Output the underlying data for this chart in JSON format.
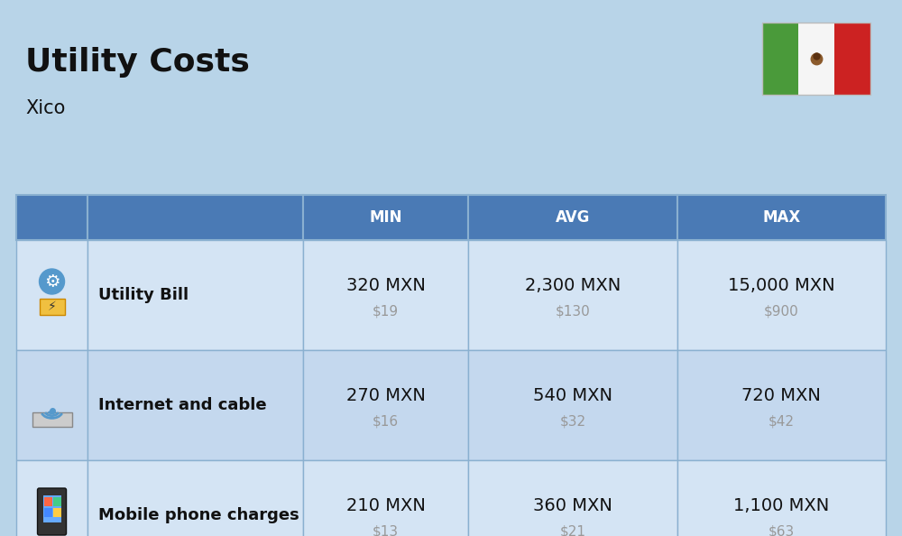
{
  "title": "Utility Costs",
  "subtitle": "Xico",
  "background_color": "#b8d4e8",
  "header_color": "#4a7ab5",
  "header_text_color": "#ffffff",
  "row_color_odd": "#d4e4f4",
  "row_color_even": "#c4d8ee",
  "border_color": "#8ab0d0",
  "text_color": "#111111",
  "secondary_text_color": "#999999",
  "columns": [
    "MIN",
    "AVG",
    "MAX"
  ],
  "rows": [
    {
      "label": "Utility Bill",
      "min_mxn": "320 MXN",
      "min_usd": "$19",
      "avg_mxn": "2,300 MXN",
      "avg_usd": "$130",
      "max_mxn": "15,000 MXN",
      "max_usd": "$900"
    },
    {
      "label": "Internet and cable",
      "min_mxn": "270 MXN",
      "min_usd": "$16",
      "avg_mxn": "540 MXN",
      "avg_usd": "$32",
      "max_mxn": "720 MXN",
      "max_usd": "$42"
    },
    {
      "label": "Mobile phone charges",
      "min_mxn": "210 MXN",
      "min_usd": "$13",
      "avg_mxn": "360 MXN",
      "avg_usd": "$21",
      "max_mxn": "1,100 MXN",
      "max_usd": "$63"
    }
  ],
  "flag_green": "#4a9a3a",
  "flag_white": "#f5f5f5",
  "flag_red": "#cc2222",
  "title_fontsize": 26,
  "subtitle_fontsize": 15,
  "header_fontsize": 12,
  "label_fontsize": 13,
  "value_fontsize": 14,
  "usd_fontsize": 11
}
